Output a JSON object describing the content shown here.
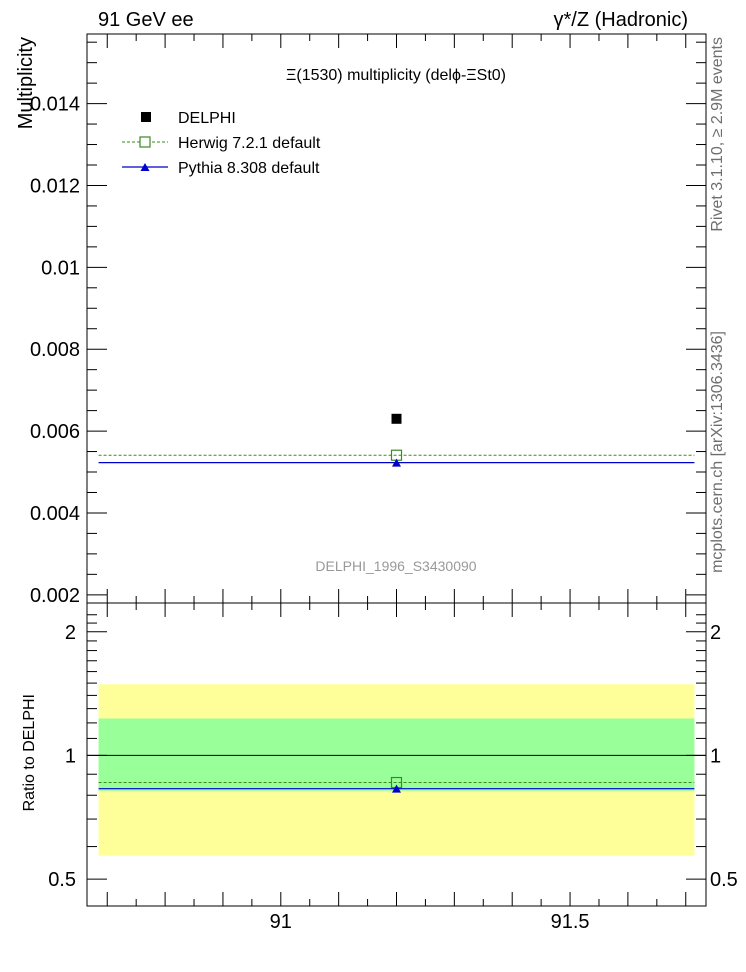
{
  "header": {
    "left": "91 GeV ee",
    "right": "γ*/Z (Hadronic)"
  },
  "side_labels": {
    "rivet": "Rivet 3.1.10, ≥ 2.9M events",
    "mcplots": "mcplots.cern.ch [arXiv:1306.3436]"
  },
  "colors": {
    "data": "#000000",
    "herwig": "#3a8a1e",
    "pythia": "#0000cc",
    "band_inner": "#99ff99",
    "band_outer": "#ffff99",
    "watermark": "#999999"
  },
  "chart_data": [
    {
      "type": "scatter",
      "title": "Ξ(1530) multiplicity (delϕ-ΞSt0)",
      "ylabel": "Multiplicity",
      "watermark": "DELPHI_1996_S3430090",
      "xlim": [
        90.665,
        91.735
      ],
      "ylim": [
        0.0018,
        0.0157
      ],
      "yticks": [
        0.002,
        0.004,
        0.006,
        0.008,
        0.01,
        0.012,
        0.014
      ],
      "ytick_labels": [
        "0.002",
        "0.004",
        "0.006",
        "0.008",
        "0.01",
        "0.012",
        "0.014"
      ],
      "x_edges": [
        90.685,
        91.715
      ],
      "legend_position": "top-left",
      "series": [
        {
          "name": "DELPHI",
          "x": [
            91.2
          ],
          "y": [
            0.0063
          ],
          "marker": "filled-square"
        },
        {
          "name": "Herwig 7.2.1 default",
          "x": [
            91.2
          ],
          "y": [
            0.00541
          ],
          "marker": "open-square",
          "line": "dashed"
        },
        {
          "name": "Pythia 8.308 default",
          "x": [
            91.2
          ],
          "y": [
            0.00523
          ],
          "marker": "triangle",
          "line": "solid"
        }
      ]
    },
    {
      "type": "scatter",
      "ylabel": "Ratio to DELPHI",
      "xlim": [
        90.665,
        91.735
      ],
      "ylim": [
        0.43,
        2.35
      ],
      "scale_y": "log",
      "yticks": [
        0.5,
        1,
        2
      ],
      "ytick_labels": [
        "0.5",
        "1",
        "2"
      ],
      "xticks": [
        91,
        91.5
      ],
      "xtick_labels": [
        "91",
        "91.5"
      ],
      "bands": {
        "inner": [
          0.82,
          1.23
        ],
        "outer": [
          0.57,
          1.49
        ]
      },
      "series": [
        {
          "name": "Herwig 7.2.1 default",
          "x": [
            91.2
          ],
          "y": [
            0.859
          ]
        },
        {
          "name": "Pythia 8.308 default",
          "x": [
            91.2
          ],
          "y": [
            0.83
          ]
        }
      ]
    }
  ]
}
